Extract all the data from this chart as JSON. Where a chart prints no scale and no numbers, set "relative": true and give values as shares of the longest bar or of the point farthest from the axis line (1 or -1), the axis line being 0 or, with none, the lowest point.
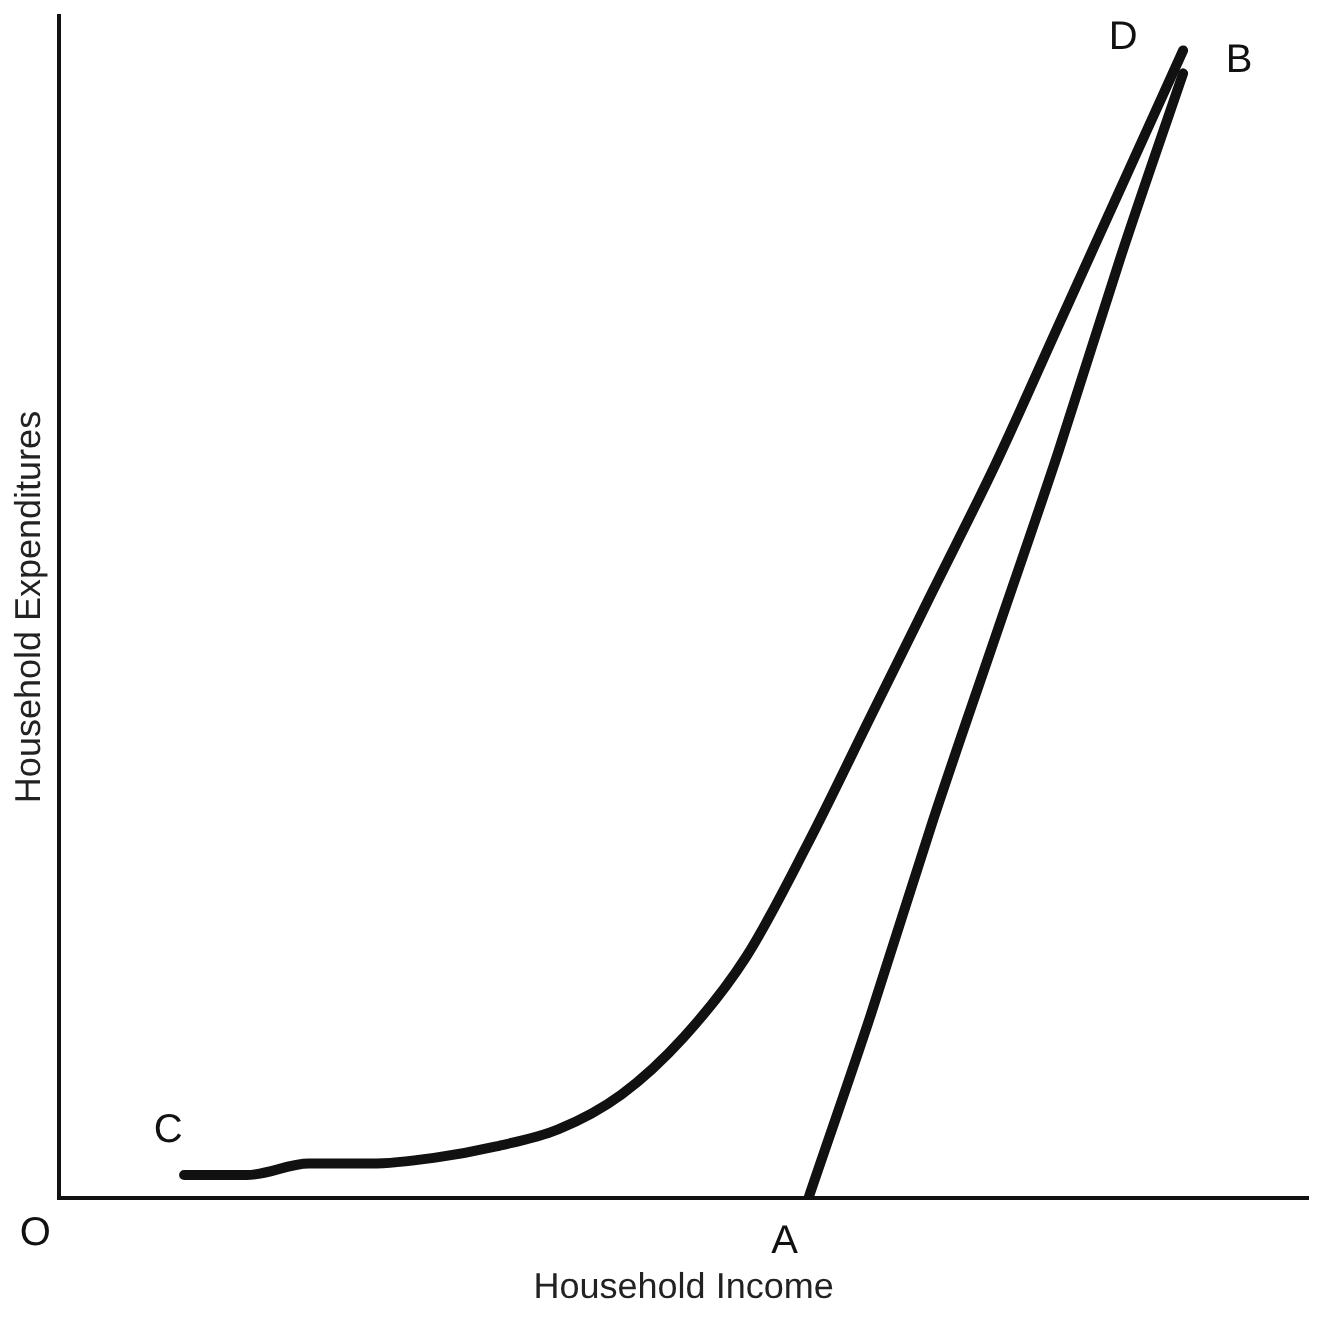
{
  "chart_data": {
    "type": "line",
    "relative": true,
    "xlabel": "Household Income",
    "ylabel": "Household Expenditures",
    "categories": [
      null,
      null,
      null,
      null,
      null,
      null,
      null,
      null,
      null,
      null,
      null,
      null,
      null,
      null,
      null,
      null,
      null,
      null,
      null,
      null,
      null
    ],
    "series": [
      {
        "color": "#111111",
        "values": [
          null,
          null,
          0.02,
          0.02,
          0.03,
          0.03,
          0.035,
          0.045,
          0.06,
          0.09,
          0.14,
          0.21,
          0.31,
          0.42,
          0.53,
          0.64,
          0.76,
          0.88,
          1.0,
          null,
          null
        ]
      },
      {
        "color": "#111111",
        "values": [
          null,
          null,
          null,
          null,
          null,
          null,
          null,
          null,
          null,
          null,
          null,
          null,
          0.0,
          0.16,
          0.33,
          0.49,
          0.65,
          0.82,
          0.98,
          null,
          null
        ]
      }
    ],
    "annotations": [
      "C",
      "D",
      "A",
      "B",
      "O"
    ],
    "grid": false,
    "legend": false,
    "marker": "none",
    "line_style": "solid"
  }
}
